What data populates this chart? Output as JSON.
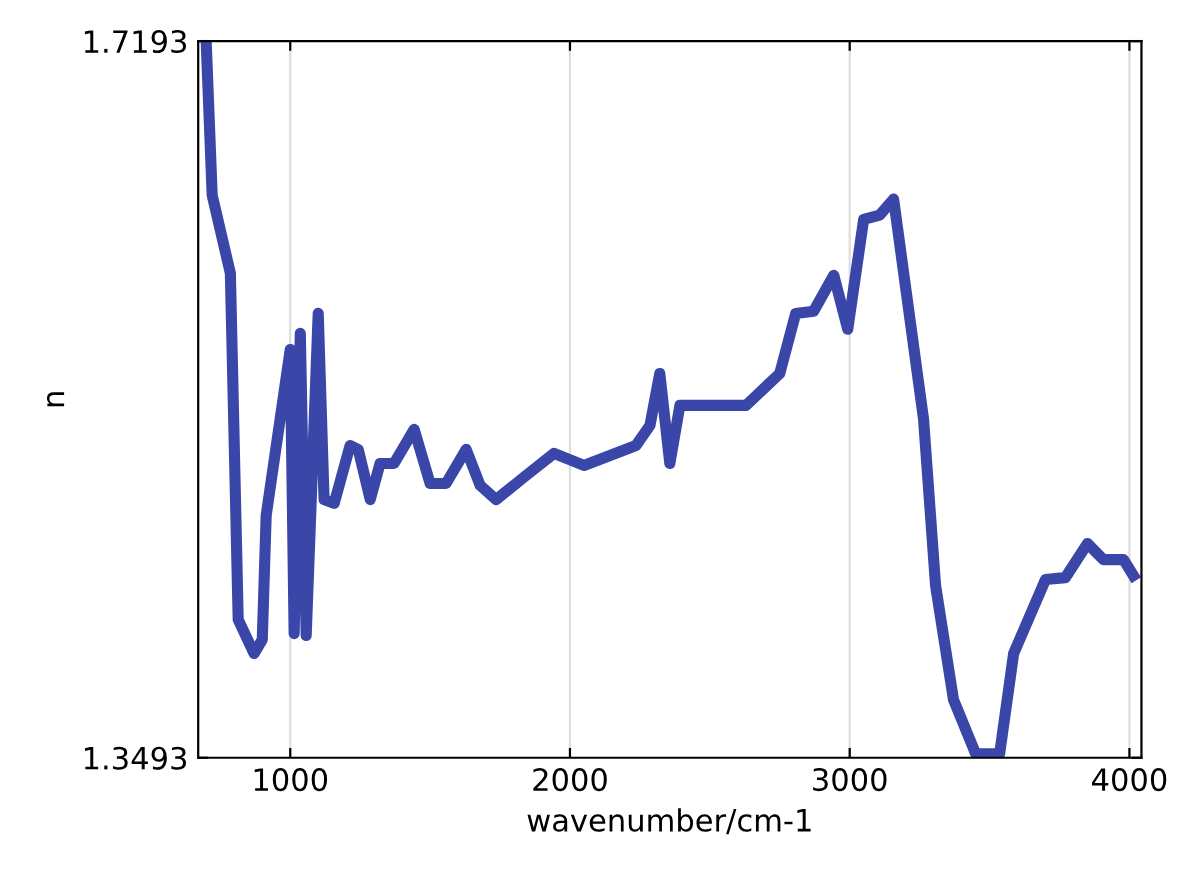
{
  "chart_data": {
    "type": "line",
    "xlabel": "wavenumber/cm-1",
    "ylabel": "n",
    "x": [
      700,
      721,
      786,
      814,
      871,
      900,
      914,
      1000,
      1014,
      1036,
      1057,
      1100,
      1121,
      1157,
      1214,
      1243,
      1286,
      1321,
      1371,
      1443,
      1500,
      1557,
      1629,
      1679,
      1736,
      1843,
      1943,
      2050,
      2236,
      2286,
      2321,
      2357,
      2393,
      2629,
      2750,
      2807,
      2871,
      2943,
      2993,
      3050,
      3107,
      3157,
      3264,
      3307,
      3371,
      3450,
      3536,
      3586,
      3700,
      3771,
      3850,
      3907,
      3979,
      4014
    ],
    "series": [
      {
        "color": "#3a46a8",
        "values": [
          1.7172,
          1.6397,
          1.5994,
          1.4206,
          1.4031,
          1.4103,
          1.4744,
          1.5601,
          1.4134,
          1.5684,
          1.4124,
          1.5787,
          1.4826,
          1.4806,
          1.5105,
          1.5085,
          1.4826,
          1.5012,
          1.5012,
          1.5188,
          1.4909,
          1.4909,
          1.5085,
          1.4899,
          1.4826,
          1.495,
          1.5064,
          1.5002,
          1.5105,
          1.5209,
          1.5477,
          1.5012,
          1.5312,
          1.5312,
          1.5477,
          1.5787,
          1.5798,
          1.5984,
          1.5705,
          1.6273,
          1.6294,
          1.6377,
          1.524,
          1.4382,
          1.3793,
          1.3514,
          1.3514,
          1.4031,
          1.4413,
          1.4423,
          1.4599,
          1.4516,
          1.4516,
          1.4434
        ]
      }
    ],
    "xlim": [
      671,
      4043
    ],
    "ylim": [
      1.3493,
      1.7193
    ],
    "xticks": [
      1000,
      2000,
      3000,
      4000
    ],
    "yticks": [
      1.3493,
      1.7193
    ],
    "grid": "x",
    "line_style": "solid",
    "marker": "none"
  }
}
